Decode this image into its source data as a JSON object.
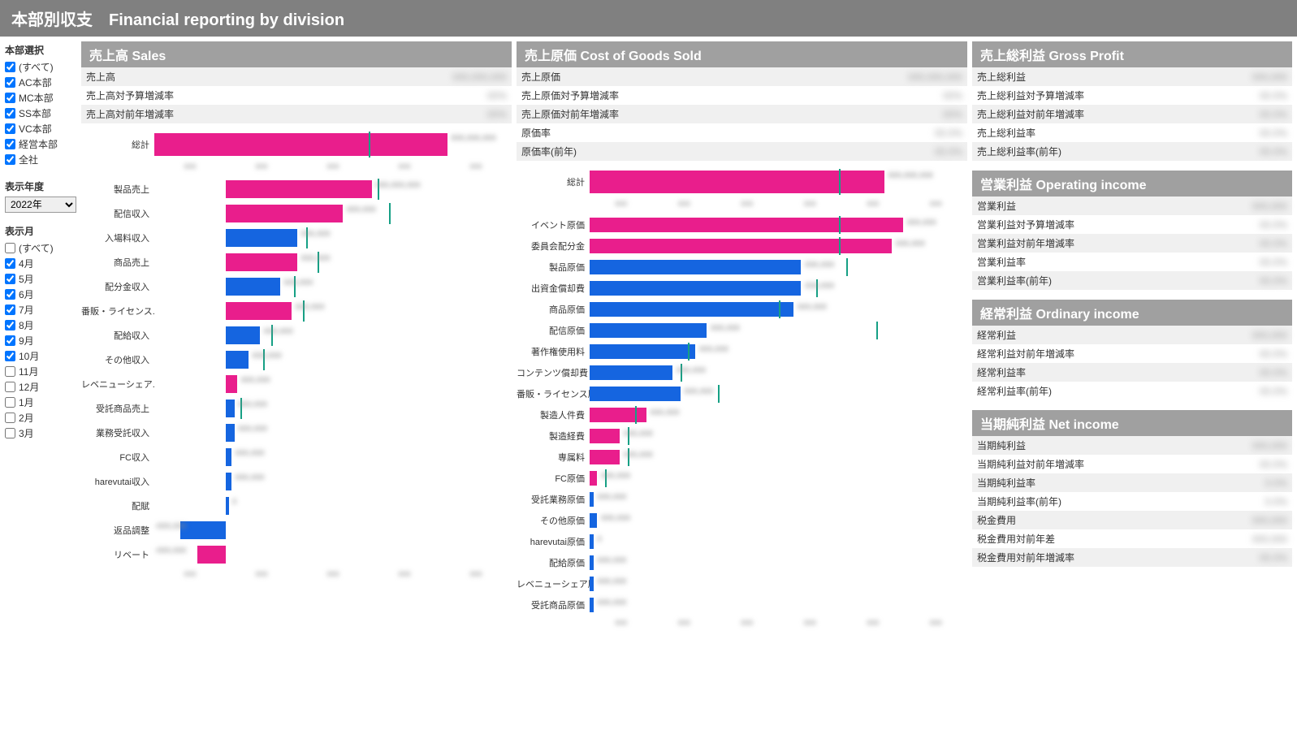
{
  "header": {
    "title": "本部別収支　Financial reporting by division"
  },
  "sidebar": {
    "hq_label": "本部選択",
    "hq_items": [
      {
        "label": "(すべて)",
        "checked": true
      },
      {
        "label": "AC本部",
        "checked": true
      },
      {
        "label": "MC本部",
        "checked": true
      },
      {
        "label": "SS本部",
        "checked": true
      },
      {
        "label": "VC本部",
        "checked": true
      },
      {
        "label": "経営本部",
        "checked": true
      },
      {
        "label": "全社",
        "checked": true
      }
    ],
    "year_label": "表示年度",
    "year_value": "2022年",
    "month_label": "表示月",
    "month_items": [
      {
        "label": "(すべて)",
        "checked": false
      },
      {
        "label": "4月",
        "checked": true
      },
      {
        "label": "5月",
        "checked": true
      },
      {
        "label": "6月",
        "checked": true
      },
      {
        "label": "7月",
        "checked": true
      },
      {
        "label": "8月",
        "checked": true
      },
      {
        "label": "9月",
        "checked": true
      },
      {
        "label": "10月",
        "checked": true
      },
      {
        "label": "11月",
        "checked": false
      },
      {
        "label": "12月",
        "checked": false
      },
      {
        "label": "1月",
        "checked": false
      },
      {
        "label": "2月",
        "checked": false
      },
      {
        "label": "3月",
        "checked": false
      }
    ]
  },
  "colors": {
    "pink": "#e91e8c",
    "blue": "#1565e0",
    "teal": "#16a085",
    "blur_text": "#888"
  },
  "sales": {
    "title": "売上高 Sales",
    "kv": [
      {
        "k": "売上高",
        "v": "000,000,000"
      },
      {
        "k": "売上高対予算増減率",
        "v": "00%"
      },
      {
        "k": "売上高対前年増減率",
        "v": "00%"
      }
    ],
    "total": {
      "label": "総計",
      "pct": 82,
      "tick": 60,
      "color": "#e91e8c",
      "val": "000,000,000"
    },
    "axis_ticks": 5,
    "detail": [
      {
        "label": "製品売上",
        "pct": 51,
        "tick": 53,
        "color": "#e91e8c",
        "val": "000,000,000"
      },
      {
        "label": "配信収入",
        "pct": 41,
        "tick": 57,
        "color": "#e91e8c",
        "val": "000,000"
      },
      {
        "label": "入場料収入",
        "pct": 25,
        "tick": 28,
        "color": "#1565e0",
        "val": "000,000"
      },
      {
        "label": "商品売上",
        "pct": 25,
        "tick": 32,
        "color": "#e91e8c",
        "val": "000,000"
      },
      {
        "label": "配分金収入",
        "pct": 19,
        "tick": 24,
        "color": "#1565e0",
        "val": "000,000"
      },
      {
        "label": "番販・ライセンス..",
        "pct": 23,
        "tick": 27,
        "color": "#e91e8c",
        "val": "000,000"
      },
      {
        "label": "配給収入",
        "pct": 12,
        "tick": 16,
        "color": "#1565e0",
        "val": "000,000"
      },
      {
        "label": "その他収入",
        "pct": 8,
        "tick": 13,
        "color": "#1565e0",
        "val": "000,000"
      },
      {
        "label": "レベニューシェア..",
        "pct": 4,
        "tick": 0,
        "color": "#e91e8c",
        "val": "000,000"
      },
      {
        "label": "受託商品売上",
        "pct": 3,
        "tick": 5,
        "color": "#1565e0",
        "val": "000,000"
      },
      {
        "label": "業務受託収入",
        "pct": 3,
        "tick": 0,
        "color": "#1565e0",
        "val": "000,000"
      },
      {
        "label": "FC収入",
        "pct": 2,
        "tick": 0,
        "color": "#1565e0",
        "val": "000,000"
      },
      {
        "label": "harevutai収入",
        "pct": 2,
        "tick": 0,
        "color": "#1565e0",
        "val": "000,000"
      },
      {
        "label": "配賦",
        "pct": 1,
        "tick": 0,
        "color": "#1565e0",
        "val": "0"
      },
      {
        "label": "返品調整",
        "pct": -16,
        "tick": 0,
        "color": "#1565e0",
        "val": "-000,000"
      },
      {
        "label": "リベート",
        "pct": -10,
        "tick": 0,
        "color": "#e91e8c",
        "val": "-000,000"
      }
    ]
  },
  "cogs": {
    "title": "売上原価 Cost of Goods Sold",
    "kv": [
      {
        "k": "売上原価",
        "v": "000,000,000"
      },
      {
        "k": "売上原価対予算増減率",
        "v": "00%"
      },
      {
        "k": "売上原価対前年増減率",
        "v": "00%"
      },
      {
        "k": "原価率",
        "v": "00.0%"
      },
      {
        "k": "原価率(前年)",
        "v": "00.0%"
      }
    ],
    "total": {
      "label": "総計",
      "pct": 78,
      "tick": 66,
      "color": "#e91e8c",
      "val": "000,000,000"
    },
    "axis_ticks": 6,
    "detail": [
      {
        "label": "イベント原価",
        "pct": 83,
        "tick": 66,
        "color": "#e91e8c",
        "val": "000,000"
      },
      {
        "label": "委員会配分金",
        "pct": 80,
        "tick": 66,
        "color": "#e91e8c",
        "val": "000,000"
      },
      {
        "label": "製品原価",
        "pct": 56,
        "tick": 68,
        "color": "#1565e0",
        "val": "000,000"
      },
      {
        "label": "出資金償却費",
        "pct": 56,
        "tick": 60,
        "color": "#1565e0",
        "val": "000,000"
      },
      {
        "label": "商品原価",
        "pct": 54,
        "tick": 50,
        "color": "#1565e0",
        "val": "000,000"
      },
      {
        "label": "配信原価",
        "pct": 31,
        "tick": 76,
        "color": "#1565e0",
        "val": "000,000"
      },
      {
        "label": "著作権使用料",
        "pct": 28,
        "tick": 26,
        "color": "#1565e0",
        "val": "000,000"
      },
      {
        "label": "コンテンツ償却費",
        "pct": 22,
        "tick": 24,
        "color": "#1565e0",
        "val": "000,000"
      },
      {
        "label": "番販・ライセンス原..",
        "pct": 24,
        "tick": 34,
        "color": "#1565e0",
        "val": "000,000"
      },
      {
        "label": "製造人件費",
        "pct": 15,
        "tick": 12,
        "color": "#e91e8c",
        "val": "000,000"
      },
      {
        "label": "製造経費",
        "pct": 8,
        "tick": 10,
        "color": "#e91e8c",
        "val": "000,000"
      },
      {
        "label": "専属料",
        "pct": 8,
        "tick": 10,
        "color": "#e91e8c",
        "val": "000,000"
      },
      {
        "label": "FC原価",
        "pct": 2,
        "tick": 4,
        "color": "#e91e8c",
        "val": "000,000"
      },
      {
        "label": "受託業務原価",
        "pct": 1,
        "tick": 0,
        "color": "#1565e0",
        "val": "000,000"
      },
      {
        "label": "その他原価",
        "pct": 2,
        "tick": 0,
        "color": "#1565e0",
        "val": "000,000"
      },
      {
        "label": "harevutai原価",
        "pct": 1,
        "tick": 0,
        "color": "#1565e0",
        "val": "0"
      },
      {
        "label": "配給原価",
        "pct": 1,
        "tick": 0,
        "color": "#1565e0",
        "val": "000,000"
      },
      {
        "label": "レベニューシェア原価",
        "pct": 1,
        "tick": 0,
        "color": "#1565e0",
        "val": "000,000"
      },
      {
        "label": "受託商品原価",
        "pct": 1,
        "tick": 0,
        "color": "#1565e0",
        "val": "000,000"
      }
    ]
  },
  "right": {
    "gross": {
      "title": "売上総利益 Gross Profit",
      "kv": [
        {
          "k": "売上総利益",
          "v": "000,000"
        },
        {
          "k": "売上総利益対予算増減率",
          "v": "00.0%"
        },
        {
          "k": "売上総利益対前年増減率",
          "v": "00.0%"
        },
        {
          "k": "売上総利益率",
          "v": "00.0%"
        },
        {
          "k": "売上総利益率(前年)",
          "v": "00.0%"
        }
      ]
    },
    "op": {
      "title": "営業利益 Operating income",
      "kv": [
        {
          "k": "営業利益",
          "v": "000,000"
        },
        {
          "k": "営業利益対予算増減率",
          "v": "00.0%"
        },
        {
          "k": "営業利益対前年増減率",
          "v": "00.0%"
        },
        {
          "k": "営業利益率",
          "v": "00.0%"
        },
        {
          "k": "営業利益率(前年)",
          "v": "00.0%"
        }
      ]
    },
    "ord": {
      "title": "経常利益 Ordinary income",
      "kv": [
        {
          "k": "経常利益",
          "v": "000,000"
        },
        {
          "k": "経常利益対前年増減率",
          "v": "00.0%"
        },
        {
          "k": "経常利益率",
          "v": "00.0%"
        },
        {
          "k": "経常利益率(前年)",
          "v": "00.0%"
        }
      ]
    },
    "net": {
      "title": "当期純利益 Net income",
      "kv": [
        {
          "k": "当期純利益",
          "v": "000,000"
        },
        {
          "k": "当期純利益対前年増減率",
          "v": "00.0%"
        },
        {
          "k": "当期純利益率",
          "v": "0.0%"
        },
        {
          "k": "当期純利益率(前年)",
          "v": "0.0%"
        },
        {
          "k": "税金費用",
          "v": "000,000"
        },
        {
          "k": "税金費用対前年差",
          "v": "000,000"
        },
        {
          "k": "税金費用対前年増減率",
          "v": "00.0%"
        }
      ]
    }
  }
}
